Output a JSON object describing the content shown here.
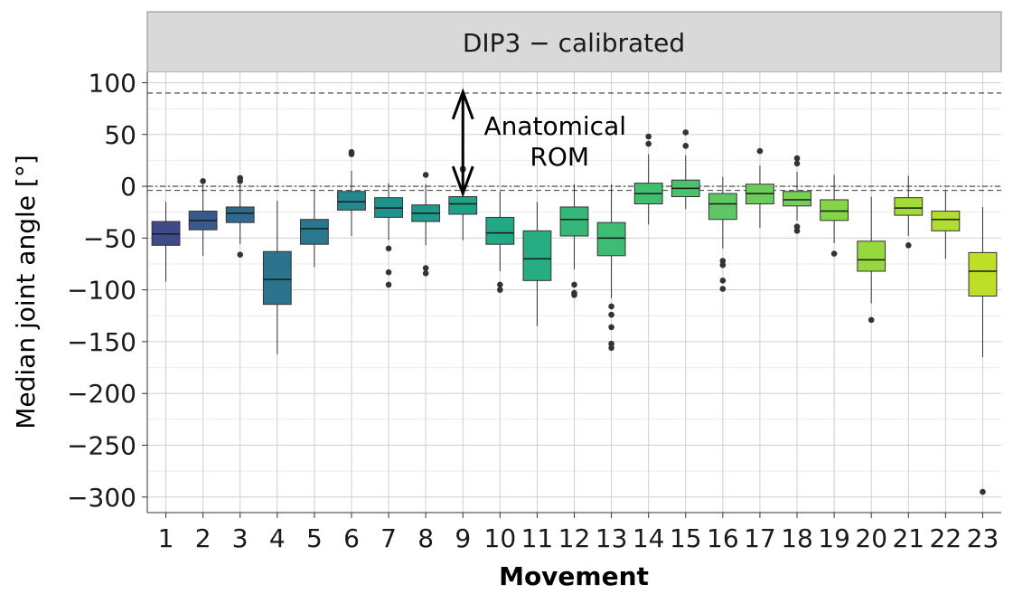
{
  "chart_data": {
    "type": "box",
    "title": "DIP3 − calibrated",
    "xlabel": "Movement",
    "ylabel": "Median joint angle [°]",
    "ylim": [
      -315,
      110
    ],
    "yticks": [
      100,
      50,
      0,
      -50,
      -100,
      -150,
      -200,
      -250,
      -300
    ],
    "ytick_labels": [
      "100",
      "50",
      "0",
      "−50",
      "−100",
      "−150",
      "−200",
      "−250",
      "−300"
    ],
    "categories": [
      "1",
      "2",
      "3",
      "4",
      "5",
      "6",
      "7",
      "8",
      "9",
      "10",
      "11",
      "12",
      "13",
      "14",
      "15",
      "16",
      "17",
      "18",
      "19",
      "20",
      "21",
      "22",
      "23"
    ],
    "grid": true,
    "reference_lines": [
      {
        "y": 90,
        "style": "dashed"
      },
      {
        "y": -4,
        "style": "dashed"
      },
      {
        "y": 0,
        "style": "dotdash"
      }
    ],
    "annotation": {
      "lines": [
        "Anatomical",
        "ROM"
      ],
      "arrow_from": -7,
      "arrow_to": 91,
      "arrow_at_x": 8.5
    },
    "boxes": [
      {
        "movement": "1",
        "whislo": -92,
        "q1": -57,
        "med": -46,
        "q3": -34,
        "whishi": -15,
        "outliers": []
      },
      {
        "movement": "2",
        "whislo": -67,
        "q1": -42,
        "med": -33,
        "q3": -24,
        "whishi": 3,
        "outliers": [
          5
        ]
      },
      {
        "movement": "3",
        "whislo": -56,
        "q1": -35,
        "med": -26,
        "q3": -20,
        "whishi": 2,
        "outliers": [
          8,
          5,
          -66
        ]
      },
      {
        "movement": "4",
        "whislo": -162,
        "q1": -114,
        "med": -90,
        "q3": -63,
        "whishi": -14,
        "outliers": []
      },
      {
        "movement": "5",
        "whislo": -78,
        "q1": -56,
        "med": -41,
        "q3": -32,
        "whishi": -3,
        "outliers": []
      },
      {
        "movement": "6",
        "whislo": -48,
        "q1": -23,
        "med": -15,
        "q3": -5,
        "whishi": 15,
        "outliers": [
          33,
          31
        ]
      },
      {
        "movement": "7",
        "whislo": -52,
        "q1": -30,
        "med": -21,
        "q3": -11,
        "whishi": 3,
        "outliers": [
          -60,
          -83,
          -95
        ]
      },
      {
        "movement": "8",
        "whislo": -57,
        "q1": -34,
        "med": -26,
        "q3": -18,
        "whishi": 2,
        "outliers": [
          11,
          -79,
          -84
        ]
      },
      {
        "movement": "9",
        "whislo": -52,
        "q1": -27,
        "med": -17,
        "q3": -10,
        "whishi": 14,
        "outliers": [
          17,
          16
        ]
      },
      {
        "movement": "10",
        "whislo": -82,
        "q1": -56,
        "med": -45,
        "q3": -30,
        "whishi": -5,
        "outliers": [
          -95,
          -100
        ]
      },
      {
        "movement": "11",
        "whislo": -135,
        "q1": -91,
        "med": -70,
        "q3": -43,
        "whishi": -15,
        "outliers": []
      },
      {
        "movement": "12",
        "whislo": -80,
        "q1": -48,
        "med": -32,
        "q3": -20,
        "whishi": 2,
        "outliers": [
          -95,
          -103,
          -105
        ]
      },
      {
        "movement": "13",
        "whislo": -108,
        "q1": -67,
        "med": -50,
        "q3": -35,
        "whishi": 2,
        "outliers": [
          -116,
          -124,
          -136,
          -152,
          -156
        ]
      },
      {
        "movement": "14",
        "whislo": -37,
        "q1": -17,
        "med": -7,
        "q3": 3,
        "whishi": 31,
        "outliers": [
          48,
          41
        ]
      },
      {
        "movement": "15",
        "whislo": -22,
        "q1": -10,
        "med": -2,
        "q3": 6,
        "whishi": 30,
        "outliers": [
          52,
          39
        ]
      },
      {
        "movement": "16",
        "whislo": -60,
        "q1": -32,
        "med": -17,
        "q3": -7,
        "whishi": 9,
        "outliers": [
          -72,
          -76,
          -91,
          -99
        ]
      },
      {
        "movement": "17",
        "whislo": -40,
        "q1": -17,
        "med": -7,
        "q3": 2,
        "whishi": 20,
        "outliers": [
          34
        ]
      },
      {
        "movement": "18",
        "whislo": -33,
        "q1": -19,
        "med": -13,
        "q3": -5,
        "whishi": 14,
        "outliers": [
          27,
          22,
          -39,
          -43
        ]
      },
      {
        "movement": "19",
        "whislo": -55,
        "q1": -33,
        "med": -24,
        "q3": -13,
        "whishi": 11,
        "outliers": [
          -65
        ]
      },
      {
        "movement": "20",
        "whislo": -113,
        "q1": -82,
        "med": -71,
        "q3": -53,
        "whishi": -10,
        "outliers": [
          -129
        ]
      },
      {
        "movement": "21",
        "whislo": -48,
        "q1": -28,
        "med": -21,
        "q3": -11,
        "whishi": 10,
        "outliers": [
          -57
        ]
      },
      {
        "movement": "22",
        "whislo": -70,
        "q1": -43,
        "med": -32,
        "q3": -24,
        "whishi": -4,
        "outliers": []
      },
      {
        "movement": "23",
        "whislo": -165,
        "q1": -106,
        "med": -82,
        "q3": -64,
        "whishi": -20,
        "outliers": [
          -295
        ]
      }
    ],
    "colors": [
      "#3E4A89",
      "#38598C",
      "#31688E",
      "#2C738E",
      "#29788E",
      "#23898E",
      "#20928C",
      "#1F9A8A",
      "#1FA187",
      "#22A884",
      "#27AD81",
      "#35B779",
      "#3DBC74",
      "#42BE71",
      "#4AC16D",
      "#5EC962",
      "#6CCD5A",
      "#75D054",
      "#86D549",
      "#95D840",
      "#A2DA37",
      "#B0DD2F",
      "#BDDF26"
    ]
  }
}
